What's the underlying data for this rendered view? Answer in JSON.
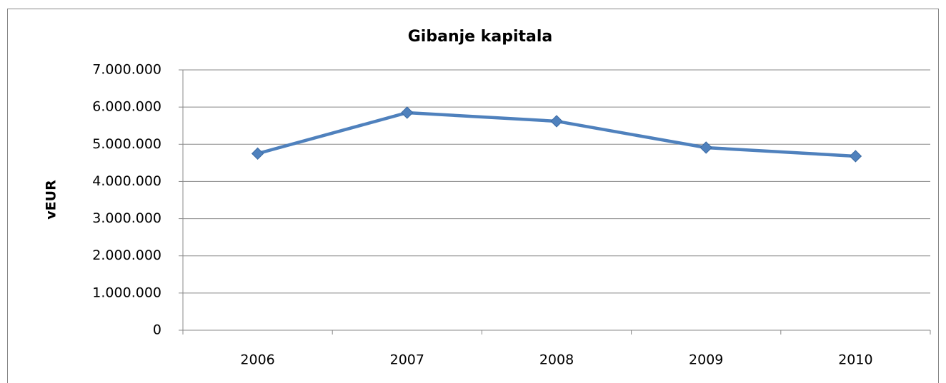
{
  "chart_data": {
    "type": "line",
    "title": "Gibanje kapitala",
    "y_label": "vEUR",
    "categories": [
      "2006",
      "2007",
      "2008",
      "2009",
      "2010"
    ],
    "series": [
      {
        "name": "Gibanje kapitala",
        "color": "#4f81bd",
        "values": [
          4750000,
          5850000,
          5620000,
          4910000,
          4680000
        ]
      }
    ],
    "ylim": [
      0,
      7000000
    ],
    "yticks": [
      0,
      {
        "value": 1000000,
        "label": "1.000.000"
      },
      {
        "value": 2000000,
        "label": "2.000.000"
      },
      {
        "value": 3000000,
        "label": "3.000.000"
      },
      {
        "value": 4000000,
        "label": "4.000.000"
      },
      {
        "value": 5000000,
        "label": "5.000.000"
      },
      {
        "value": 6000000,
        "label": "6.000.000"
      },
      {
        "value": 7000000,
        "label": "7.000.000"
      }
    ],
    "grid": true,
    "legend": false
  }
}
